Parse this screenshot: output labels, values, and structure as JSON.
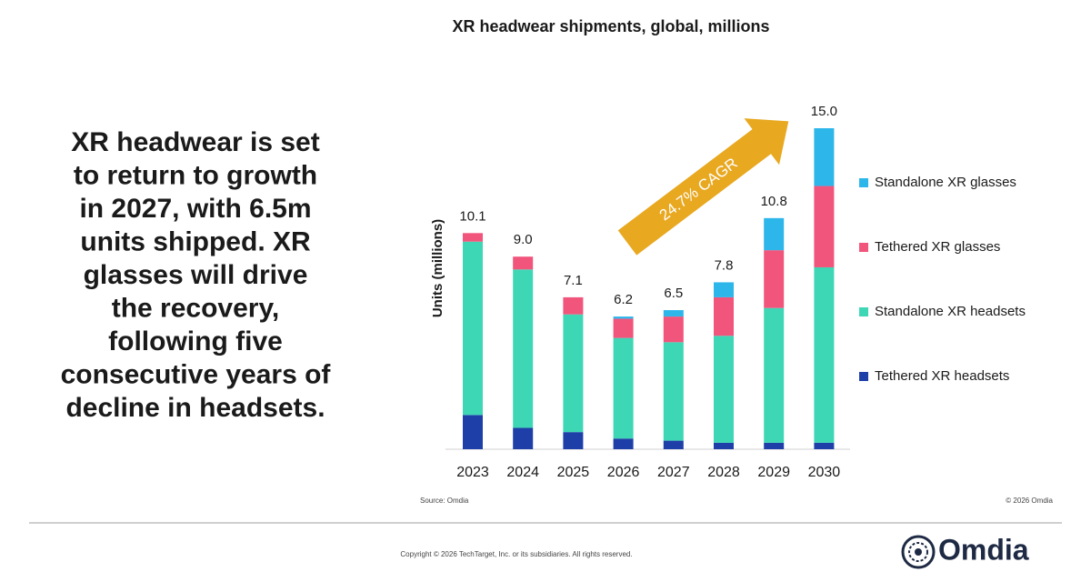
{
  "headline_lines": [
    "XR headwear is set",
    "to return to growth",
    "in 2027, with 6.5m",
    "units shipped. XR",
    "glasses will drive",
    "the recovery,",
    "following five",
    "consecutive years of",
    "decline in headsets."
  ],
  "chart_data": {
    "type": "stacked_bar",
    "title": "XR headwear shipments, global, millions",
    "y_label": "Units (millions)",
    "categories": [
      "2023",
      "2024",
      "2025",
      "2026",
      "2027",
      "2028",
      "2029",
      "2030"
    ],
    "series": [
      {
        "name": "Tethered XR headsets",
        "color": "#1f3fa8",
        "values": [
          1.6,
          1.0,
          0.8,
          0.5,
          0.4,
          0.3,
          0.3,
          0.3
        ]
      },
      {
        "name": "Standalone XR headsets",
        "color": "#3ed7b6",
        "values": [
          8.1,
          7.4,
          5.5,
          4.7,
          4.6,
          5.0,
          6.3,
          8.2
        ]
      },
      {
        "name": "Tethered XR glasses",
        "color": "#f1557b",
        "values": [
          0.4,
          0.6,
          0.8,
          0.9,
          1.2,
          1.8,
          2.7,
          3.8
        ]
      },
      {
        "name": "Standalone XR glasses",
        "color": "#2db6ea",
        "values": [
          0,
          0,
          0,
          0.1,
          0.3,
          0.7,
          1.5,
          2.7
        ]
      }
    ],
    "total_labels": [
      "10.1",
      "9.0",
      "7.1",
      "6.2",
      "6.5",
      "7.8",
      "10.8",
      "15.0"
    ],
    "ylim": [
      0,
      15
    ],
    "annotation": "24.7% CAGR",
    "annotation_color": "#e8a820",
    "source": "Source: Omdia",
    "copyright_note": "© 2026 Omdia"
  },
  "footer": {
    "copyright": "Copyright © 2026 TechTarget, Inc. or its subsidiaries. All rights reserved.",
    "brand": "Omdia"
  }
}
